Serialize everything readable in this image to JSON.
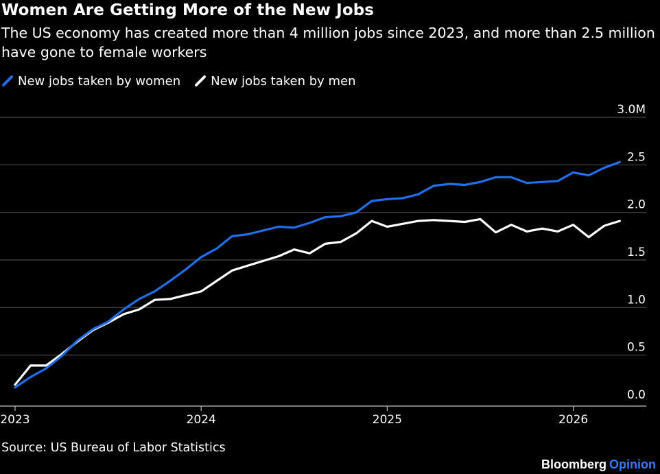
{
  "header": {
    "title": "Women Are Getting More of the New Jobs",
    "subtitle": "The US economy has created more than 4 million jobs since 2023, and more than 2.5 million have gone to female workers"
  },
  "footer": {
    "source": "Source: US Bureau of Labor Statistics",
    "brand_main": "Bloomberg",
    "brand_accent": "Opinion"
  },
  "colors": {
    "background": "#000000",
    "women": "#1f6fef",
    "men": "#ffffff",
    "grid": "#4a4a4a",
    "axis_text": "#ffffff",
    "brand_accent": "#2f7df6"
  },
  "chart_data": {
    "type": "line",
    "title": "Women Are Getting More of the New Jobs",
    "subtitle": "The US economy has created more than 4 million jobs since 2023, and more than 2.5 million have gone to female workers",
    "xlabel": "",
    "ylabel": "",
    "x_ticks": [
      "2023",
      "2024",
      "2025",
      "2026"
    ],
    "x_tick_dates": [
      "2023-01",
      "2024-01",
      "2025-01",
      "2026-01"
    ],
    "y_ticks": [
      0.0,
      0.5,
      1.0,
      1.5,
      2.0,
      2.5,
      3.0
    ],
    "y_tick_labels": [
      "0.0",
      "0.5",
      "1.0",
      "1.5",
      "2.0",
      "2.5",
      "3.0M"
    ],
    "ylim": [
      0,
      3.0
    ],
    "xlim": [
      "2023-01",
      "2026-04"
    ],
    "y_unit": "million jobs",
    "grid": true,
    "legend_position": "top-left",
    "x": [
      "2023-01",
      "2023-02",
      "2023-03",
      "2023-04",
      "2023-05",
      "2023-06",
      "2023-07",
      "2023-08",
      "2023-09",
      "2023-10",
      "2023-11",
      "2023-12",
      "2024-01",
      "2024-02",
      "2024-03",
      "2024-04",
      "2024-05",
      "2024-06",
      "2024-07",
      "2024-08",
      "2024-09",
      "2024-10",
      "2024-11",
      "2024-12",
      "2025-01",
      "2025-02",
      "2025-03",
      "2025-04",
      "2025-05",
      "2025-06",
      "2025-07",
      "2025-08",
      "2025-09",
      "2025-10",
      "2025-11",
      "2025-12",
      "2026-01",
      "2026-02",
      "2026-03",
      "2026-04"
    ],
    "series": [
      {
        "name": "New jobs taken by women",
        "color": "#1f6fef",
        "values": [
          0.16,
          0.27,
          0.36,
          0.49,
          0.65,
          0.77,
          0.85,
          0.98,
          1.09,
          1.17,
          1.28,
          1.4,
          1.53,
          1.62,
          1.75,
          1.77,
          1.81,
          1.85,
          1.84,
          1.89,
          1.95,
          1.96,
          2.0,
          2.12,
          2.14,
          2.15,
          2.19,
          2.28,
          2.3,
          2.29,
          2.32,
          2.37,
          2.37,
          2.31,
          2.32,
          2.33,
          2.42,
          2.39,
          2.47,
          2.53
        ]
      },
      {
        "name": "New jobs taken by men",
        "color": "#ffffff",
        "values": [
          0.19,
          0.39,
          0.39,
          0.51,
          0.64,
          0.76,
          0.84,
          0.93,
          0.98,
          1.08,
          1.09,
          1.13,
          1.17,
          1.28,
          1.39,
          1.44,
          1.49,
          1.54,
          1.61,
          1.57,
          1.67,
          1.69,
          1.78,
          1.91,
          1.85,
          1.88,
          1.91,
          1.92,
          1.91,
          1.9,
          1.93,
          1.79,
          1.87,
          1.8,
          1.83,
          1.8,
          1.87,
          1.74,
          1.86,
          1.91
        ]
      }
    ]
  }
}
